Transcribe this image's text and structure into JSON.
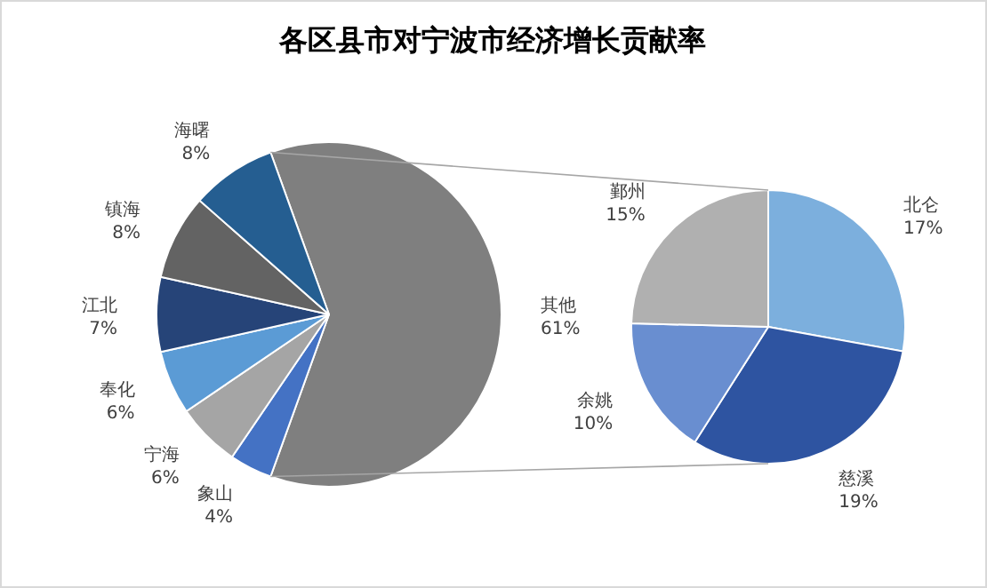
{
  "chart_data": [
    {
      "type": "pie",
      "title": "各区县市对宁波市经济增长贡献率",
      "categories": [
        "其他",
        "象山",
        "宁海",
        "奉化",
        "江北",
        "镇海",
        "海曙"
      ],
      "values": [
        61,
        4,
        6,
        6,
        7,
        8,
        8
      ],
      "colors": [
        "#7f7f7f",
        "#4472c4",
        "#a5a5a5",
        "#5b9bd5",
        "#264478",
        "#636363",
        "#255e91"
      ],
      "value_labels": [
        "61%",
        "4%",
        "6%",
        "6%",
        "7%",
        "8%",
        "8%"
      ],
      "legend": false
    },
    {
      "type": "pie",
      "categories": [
        "北仑",
        "慈溪",
        "余姚",
        "鄞州"
      ],
      "values": [
        17,
        19,
        10,
        15
      ],
      "colors": [
        "#7cafdd",
        "#2e54a1",
        "#698ed0",
        "#b0b0b0"
      ],
      "value_labels": [
        "17%",
        "19%",
        "10%",
        "15%"
      ],
      "legend": false
    }
  ]
}
